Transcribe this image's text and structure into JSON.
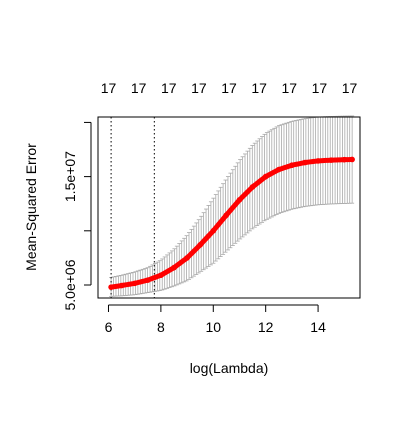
{
  "chart_data": {
    "type": "line",
    "xlabel": "log(Lambda)",
    "ylabel": "Mean-Squared Error",
    "xlim": [
      5.6,
      15.6
    ],
    "ylim": [
      3800000,
      20500000
    ],
    "x_ticks": [
      6,
      8,
      10,
      12,
      14
    ],
    "y_ticks": [
      5000000,
      15000000
    ],
    "y_tick_labels": [
      "5.0e+06",
      "1.5e+07"
    ],
    "y_minor_ticks": [
      10000000,
      20000000
    ],
    "top_ticks": [
      6.0,
      7.15,
      8.3,
      9.45,
      10.6,
      11.75,
      12.9,
      14.05,
      15.2
    ],
    "top_labels": [
      "17",
      "17",
      "17",
      "17",
      "17",
      "17",
      "17",
      "17",
      "17"
    ],
    "vlines": [
      6.1,
      7.75
    ],
    "colors": {
      "mean": "#ff0000",
      "errorbar": "#a9a9a9",
      "vline": "#000000"
    },
    "series": [
      {
        "x": [
          6.1,
          6.5,
          7.0,
          7.5,
          8.0,
          8.5,
          9.0,
          9.5,
          10.0,
          10.5,
          11.0,
          11.5,
          12.0,
          12.5,
          13.0,
          13.5,
          14.0,
          14.5,
          15.0,
          15.3
        ],
        "y": [
          4800000,
          4950000,
          5150000,
          5450000,
          5900000,
          6600000,
          7500000,
          8700000,
          10000000,
          11450000,
          12850000,
          14050000,
          15000000,
          15650000,
          16050000,
          16300000,
          16450000,
          16520000,
          16560000,
          16580000
        ],
        "upper": [
          5700000,
          5900000,
          6200000,
          6600000,
          7300000,
          8300000,
          9600000,
          11200000,
          13000000,
          14800000,
          16500000,
          17900000,
          19000000,
          19700000,
          20100000,
          20350000,
          20500000,
          20550000,
          20580000,
          20600000
        ],
        "lower": [
          3950000,
          4000000,
          4100000,
          4300000,
          4500000,
          4900000,
          5400000,
          6200000,
          7000000,
          8100000,
          9200000,
          10200000,
          11000000,
          11600000,
          12000000,
          12250000,
          12400000,
          12480000,
          12520000,
          12550000
        ]
      }
    ]
  }
}
